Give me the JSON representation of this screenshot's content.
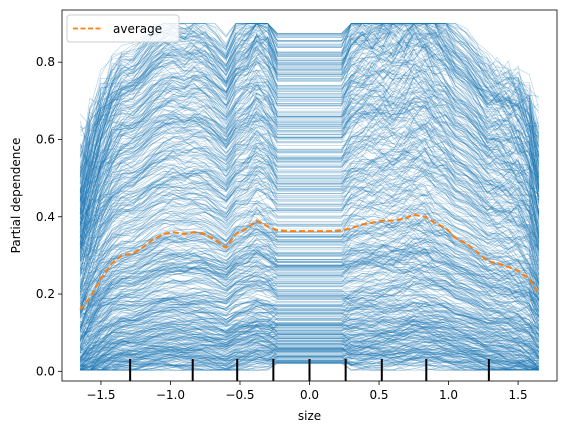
{
  "chart_data": {
    "type": "line",
    "xlabel": "size",
    "ylabel": "Partial dependence",
    "xlim": [
      -1.78,
      1.78
    ],
    "ylim": [
      -0.025,
      0.935
    ],
    "xticks": [
      -1.5,
      -1.0,
      -0.5,
      0.0,
      0.5,
      1.0,
      1.5
    ],
    "xtick_labels": [
      "−1.5",
      "−1.0",
      "−0.5",
      "0.0",
      "0.5",
      "1.0",
      "1.5"
    ],
    "yticks": [
      0.0,
      0.2,
      0.4,
      0.6,
      0.8
    ],
    "ytick_labels": [
      "0.0",
      "0.2",
      "0.4",
      "0.6",
      "0.8"
    ],
    "legend": {
      "label": "average",
      "position": "upper-left"
    },
    "colors": {
      "ice": "#1f77b4",
      "average": "#ff7f0e",
      "rug": "#000000"
    },
    "grid": false,
    "ice_curve_count": 600,
    "average": {
      "name": "average",
      "x": [
        -1.65,
        -1.58,
        -1.5,
        -1.42,
        -1.35,
        -1.27,
        -1.2,
        -1.13,
        -1.05,
        -0.98,
        -0.9,
        -0.83,
        -0.75,
        -0.68,
        -0.6,
        -0.53,
        -0.45,
        -0.38,
        -0.3,
        -0.23,
        -0.15,
        -0.08,
        0.0,
        0.08,
        0.15,
        0.23,
        0.3,
        0.38,
        0.45,
        0.53,
        0.6,
        0.68,
        0.75,
        0.83,
        0.9,
        0.98,
        1.05,
        1.13,
        1.2,
        1.28,
        1.35,
        1.43,
        1.5,
        1.58,
        1.65
      ],
      "y": [
        0.16,
        0.19,
        0.24,
        0.28,
        0.3,
        0.305,
        0.32,
        0.34,
        0.355,
        0.36,
        0.355,
        0.36,
        0.355,
        0.34,
        0.32,
        0.355,
        0.37,
        0.39,
        0.375,
        0.365,
        0.363,
        0.363,
        0.363,
        0.363,
        0.363,
        0.365,
        0.37,
        0.38,
        0.385,
        0.39,
        0.39,
        0.395,
        0.405,
        0.4,
        0.385,
        0.37,
        0.345,
        0.33,
        0.31,
        0.285,
        0.28,
        0.27,
        0.26,
        0.24,
        0.2
      ]
    },
    "rug": [
      -1.29,
      -0.84,
      -0.52,
      -0.26,
      0.0,
      0.26,
      0.52,
      0.84,
      1.29
    ]
  }
}
